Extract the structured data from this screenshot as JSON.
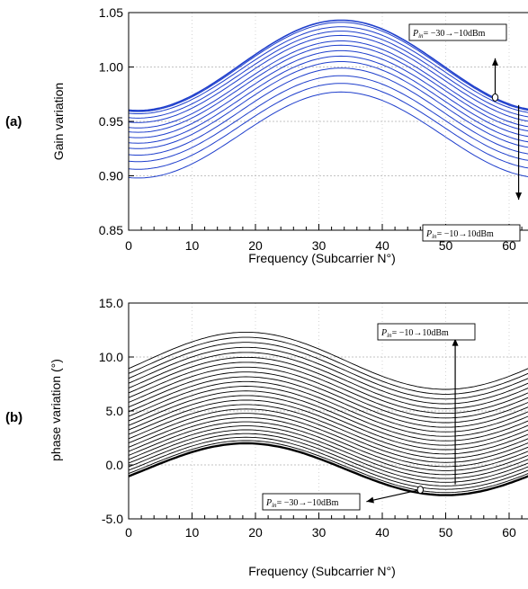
{
  "chart_data": [
    {
      "type": "line",
      "panel_label": "(a)",
      "xlabel": "Frequency (Subcarrier N°)",
      "ylabel": "Gain variation",
      "xlim": [
        0,
        64
      ],
      "ylim": [
        0.85,
        1.05
      ],
      "xticks": [
        "0",
        "10",
        "20",
        "30",
        "40",
        "50",
        "60"
      ],
      "yticks": [
        "0.85",
        "0.90",
        "0.95",
        "1.00",
        "1.05"
      ],
      "grid": "horizontal dashed",
      "color": "#1f3fcc",
      "curve_model": "sinusoid centered at x=33.5, period 64",
      "series": [
        {
          "start": 0.96,
          "peak": 1.043
        },
        {
          "start": 0.959,
          "peak": 1.041
        },
        {
          "start": 0.957,
          "peak": 1.037
        },
        {
          "start": 0.953,
          "peak": 1.033
        },
        {
          "start": 0.949,
          "peak": 1.029
        },
        {
          "start": 0.944,
          "peak": 1.024
        },
        {
          "start": 0.94,
          "peak": 1.02
        },
        {
          "start": 0.935,
          "peak": 1.015
        },
        {
          "start": 0.93,
          "peak": 1.01
        },
        {
          "start": 0.925,
          "peak": 1.005
        },
        {
          "start": 0.919,
          "peak": 0.999
        },
        {
          "start": 0.913,
          "peak": 0.992
        },
        {
          "start": 0.906,
          "peak": 0.985
        },
        {
          "start": 0.898,
          "peak": 0.977
        }
      ],
      "annotations": [
        {
          "pin": "P",
          "sub": "in",
          "text": "= −30→−10dBm",
          "arrow_from": [
            57.8,
            0.972
          ],
          "arrow_to": [
            57.8,
            1.008
          ]
        },
        {
          "pin": "P",
          "sub": "in",
          "text": "= −10→10dBm",
          "arrow_from": [
            61.5,
            0.965
          ],
          "arrow_to": [
            61.5,
            0.878
          ]
        }
      ]
    },
    {
      "type": "line",
      "panel_label": "(b)",
      "xlabel": "Frequency (Subcarrier N°)",
      "ylabel": "phase variation (°)",
      "xlim": [
        0,
        64
      ],
      "ylim": [
        -5.0,
        15.0
      ],
      "xticks": [
        "0",
        "10",
        "20",
        "30",
        "40",
        "50",
        "60"
      ],
      "yticks": [
        "-5.0",
        "0.0",
        "5.0",
        "10.0",
        "15.0"
      ],
      "grid": "horizontal dashed",
      "color": "#000000",
      "curve_model": "sinusoid with max at x=18.5, min at x=50",
      "series_count": 26,
      "series_base_offset": 0.0,
      "series_step_min": 0.27,
      "series_step_max": 0.52,
      "series_bottom": {
        "at_0": -0.8,
        "max": 2.0,
        "min": -2.8
      },
      "series_top": {
        "at_0": 9.5,
        "max": 12.3,
        "min": 7.0
      },
      "annotations": [
        {
          "pin": "P",
          "sub": "in",
          "text": "= −10→10dBm",
          "arrow_from": [
            51.5,
            -1.8
          ],
          "arrow_to": [
            51.5,
            11.7
          ]
        },
        {
          "pin": "P",
          "sub": "in",
          "text": "= −30→−10dBm",
          "arrow_from": [
            46.0,
            -2.3
          ],
          "arrow_to": [
            37.5,
            -3.4
          ]
        }
      ]
    }
  ]
}
